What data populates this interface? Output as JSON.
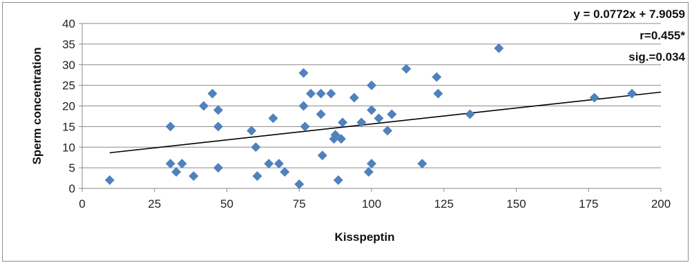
{
  "chart_data": {
    "type": "scatter",
    "title": "",
    "xlabel": "Kisspeptin",
    "ylabel": "Sperm concentration",
    "xlim": [
      0,
      200
    ],
    "ylim": [
      0,
      40
    ],
    "xticks": [
      0,
      25,
      50,
      75,
      100,
      125,
      150,
      175,
      200
    ],
    "yticks": [
      0,
      5,
      10,
      15,
      20,
      25,
      30,
      35,
      40
    ],
    "grid": "horizontal",
    "marker": "diamond",
    "marker_color": "#4f81bd",
    "trendline_color": "#000000",
    "trendline": {
      "slope": 0.0772,
      "intercept": 7.9059,
      "x_range": [
        9.5,
        200
      ]
    },
    "annotations": [
      "y = 0.0772x + 7.9059",
      "r=0.455*",
      "sig.=0.034"
    ],
    "points": [
      {
        "x": 9.5,
        "y": 2
      },
      {
        "x": 30.5,
        "y": 15
      },
      {
        "x": 30.5,
        "y": 6
      },
      {
        "x": 32.5,
        "y": 4
      },
      {
        "x": 34.5,
        "y": 6
      },
      {
        "x": 38.5,
        "y": 3
      },
      {
        "x": 42,
        "y": 20
      },
      {
        "x": 45,
        "y": 23
      },
      {
        "x": 47,
        "y": 19
      },
      {
        "x": 47,
        "y": 15
      },
      {
        "x": 47,
        "y": 5
      },
      {
        "x": 58.5,
        "y": 14
      },
      {
        "x": 60,
        "y": 10
      },
      {
        "x": 60.5,
        "y": 3
      },
      {
        "x": 64.5,
        "y": 6
      },
      {
        "x": 66,
        "y": 17
      },
      {
        "x": 68,
        "y": 6
      },
      {
        "x": 70,
        "y": 4
      },
      {
        "x": 75,
        "y": 1
      },
      {
        "x": 76.5,
        "y": 28
      },
      {
        "x": 76.5,
        "y": 20
      },
      {
        "x": 77,
        "y": 15
      },
      {
        "x": 79,
        "y": 23
      },
      {
        "x": 82.5,
        "y": 23
      },
      {
        "x": 82.5,
        "y": 18
      },
      {
        "x": 83,
        "y": 8
      },
      {
        "x": 86,
        "y": 23
      },
      {
        "x": 87,
        "y": 12
      },
      {
        "x": 87.5,
        "y": 13
      },
      {
        "x": 88.5,
        "y": 2
      },
      {
        "x": 89.5,
        "y": 12
      },
      {
        "x": 90,
        "y": 16
      },
      {
        "x": 94,
        "y": 22
      },
      {
        "x": 96.5,
        "y": 16
      },
      {
        "x": 99,
        "y": 4
      },
      {
        "x": 100,
        "y": 25
      },
      {
        "x": 100,
        "y": 19
      },
      {
        "x": 100,
        "y": 6
      },
      {
        "x": 102.5,
        "y": 17
      },
      {
        "x": 105.5,
        "y": 14
      },
      {
        "x": 107,
        "y": 18
      },
      {
        "x": 112,
        "y": 29
      },
      {
        "x": 117.5,
        "y": 6
      },
      {
        "x": 122.5,
        "y": 27
      },
      {
        "x": 123,
        "y": 23
      },
      {
        "x": 134,
        "y": 18
      },
      {
        "x": 144,
        "y": 34
      },
      {
        "x": 177,
        "y": 22
      },
      {
        "x": 190,
        "y": 23
      }
    ]
  }
}
